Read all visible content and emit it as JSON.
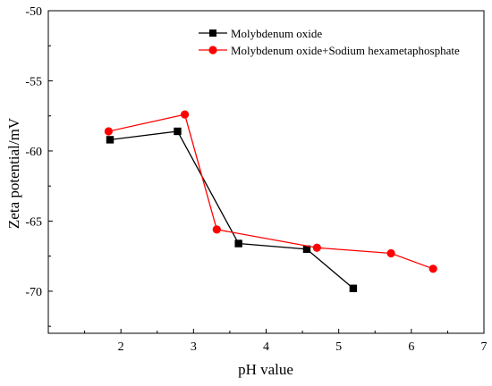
{
  "chart_data": {
    "type": "line",
    "xlabel": "pH value",
    "ylabel": "Zeta potential/mV",
    "xlim": [
      1,
      7
    ],
    "ylim": [
      -73,
      -50
    ],
    "x_ticks": [
      2,
      3,
      4,
      5,
      6,
      7
    ],
    "y_ticks": [
      -50,
      -55,
      -60,
      -65,
      -70
    ],
    "legend_position": "top-right",
    "grid": false,
    "series": [
      {
        "name": "Molybdenum oxide",
        "color": "#000000",
        "marker": "square",
        "points": [
          {
            "x": 1.85,
            "y": -59.2
          },
          {
            "x": 2.78,
            "y": -58.6
          },
          {
            "x": 3.62,
            "y": -66.6
          },
          {
            "x": 4.56,
            "y": -67.0
          },
          {
            "x": 5.2,
            "y": -69.8
          }
        ]
      },
      {
        "name": "Molybdenum oxide+Sodium hexametaphosphate",
        "color": "#ff0000",
        "marker": "circle",
        "points": [
          {
            "x": 1.83,
            "y": -58.6
          },
          {
            "x": 2.88,
            "y": -57.4
          },
          {
            "x": 3.32,
            "y": -65.6
          },
          {
            "x": 4.7,
            "y": -66.9
          },
          {
            "x": 5.72,
            "y": -67.3
          },
          {
            "x": 6.3,
            "y": -68.4
          }
        ]
      }
    ]
  }
}
